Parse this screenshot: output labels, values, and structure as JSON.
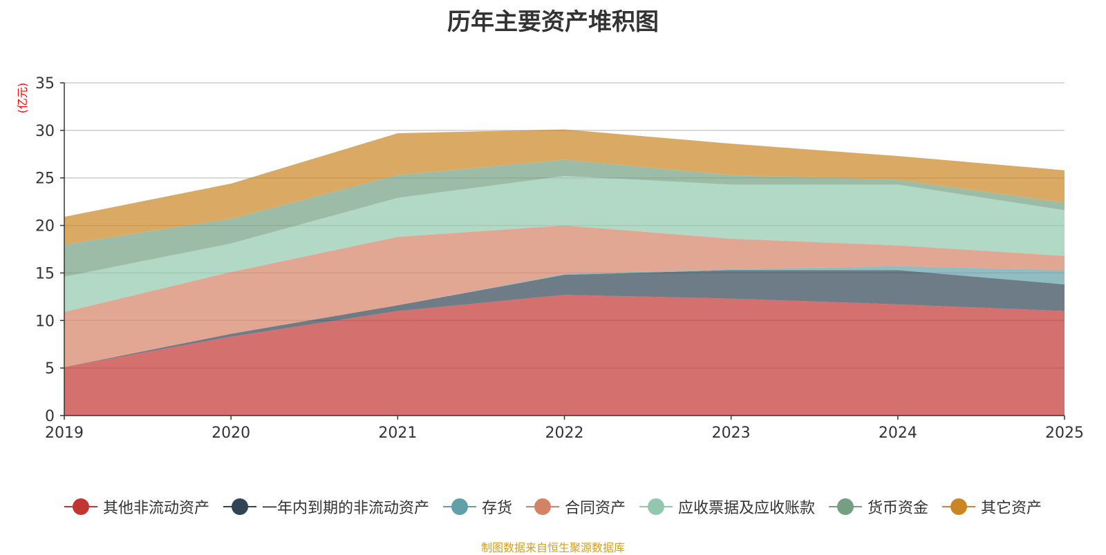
{
  "chart_data": {
    "type": "area",
    "stacked": true,
    "title": "历年主要资产堆积图",
    "unit_label": "(亿元)",
    "x": [
      "2019",
      "2020",
      "2021",
      "2022",
      "2023",
      "2024",
      "2025"
    ],
    "ylim": [
      0,
      35
    ],
    "yticks": [
      0,
      5,
      10,
      15,
      20,
      25,
      30,
      35
    ],
    "grid": true,
    "legend_position": "bottom",
    "series": [
      {
        "name": "其他非流动资产",
        "color": "#c23531",
        "values": [
          5.1,
          8.3,
          11.0,
          12.7,
          12.3,
          11.7,
          11.0
        ]
      },
      {
        "name": "一年内到期的非流动资产",
        "color": "#2f4554",
        "values": [
          0.0,
          0.3,
          0.6,
          2.1,
          3.0,
          3.6,
          2.8
        ]
      },
      {
        "name": "存货",
        "color": "#61a0a8",
        "values": [
          0.0,
          0.0,
          0.0,
          0.1,
          0.1,
          0.4,
          1.5
        ]
      },
      {
        "name": "合同资产",
        "color": "#d48265",
        "values": [
          5.8,
          6.5,
          7.2,
          5.1,
          3.2,
          2.2,
          1.5
        ]
      },
      {
        "name": "应收票据及应收账款",
        "color": "#91c7ae",
        "values": [
          3.7,
          3.0,
          4.1,
          5.2,
          5.7,
          6.4,
          4.8
        ]
      },
      {
        "name": "货币资金",
        "color": "#749f83",
        "values": [
          3.4,
          2.6,
          2.4,
          1.7,
          1.0,
          0.5,
          0.8
        ]
      },
      {
        "name": "其它资产",
        "color": "#ca8622",
        "values": [
          2.9,
          3.7,
          4.4,
          3.2,
          3.3,
          2.5,
          3.4
        ]
      }
    ]
  },
  "source_note": "制图数据来自恒生聚源数据库"
}
